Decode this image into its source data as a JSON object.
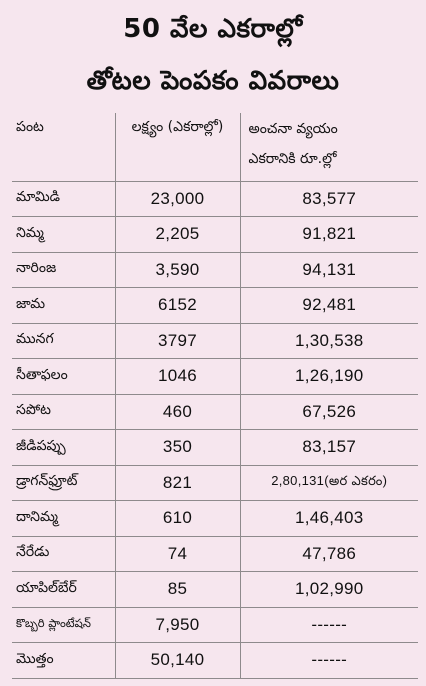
{
  "title_line1": "50 వేల ఎకరాల్లో",
  "title_line2": "తోటల పెంపకం వివరాలు",
  "headers": {
    "crop": "పంట",
    "target": "లక్ష్యం (ఎకరాల్లో)",
    "cost_line1": "అంచనా వ్యయం",
    "cost_line2": "ఎకరానికి రూ.ల్లో"
  },
  "rows": [
    {
      "crop": "మామిడి",
      "target": "23,000",
      "cost": "83,577"
    },
    {
      "crop": "నిమ్మ",
      "target": "2,205",
      "cost": "91,821"
    },
    {
      "crop": "నారింజ",
      "target": "3,590",
      "cost": "94,131"
    },
    {
      "crop": "జామ",
      "target": "6152",
      "cost": "92,481"
    },
    {
      "crop": "మునగ",
      "target": "3797",
      "cost": "1,30,538"
    },
    {
      "crop": "సీతాఫలం",
      "target": "1046",
      "cost": "1,26,190"
    },
    {
      "crop": "సపోట",
      "target": "460",
      "cost": "67,526"
    },
    {
      "crop": "జీడిపప్పు",
      "target": "350",
      "cost": "83,157"
    },
    {
      "crop": "డ్రాగన్‌ఫ్రూట్",
      "target": "821",
      "cost": "2,80,131(అర ఎకరం)"
    },
    {
      "crop": "దానిమ్మ",
      "target": "610",
      "cost": "1,46,403"
    },
    {
      "crop": "నేరేడు",
      "target": "74",
      "cost": "47,786"
    },
    {
      "crop": "యాపిల్‌బేర్",
      "target": "85",
      "cost": "1,02,990"
    },
    {
      "crop": "కొబ్బరి ప్లాంటేషన్",
      "target": "7,950",
      "cost": "------"
    },
    {
      "crop": "మొత్తం",
      "target": "50,140",
      "cost": "------"
    }
  ]
}
